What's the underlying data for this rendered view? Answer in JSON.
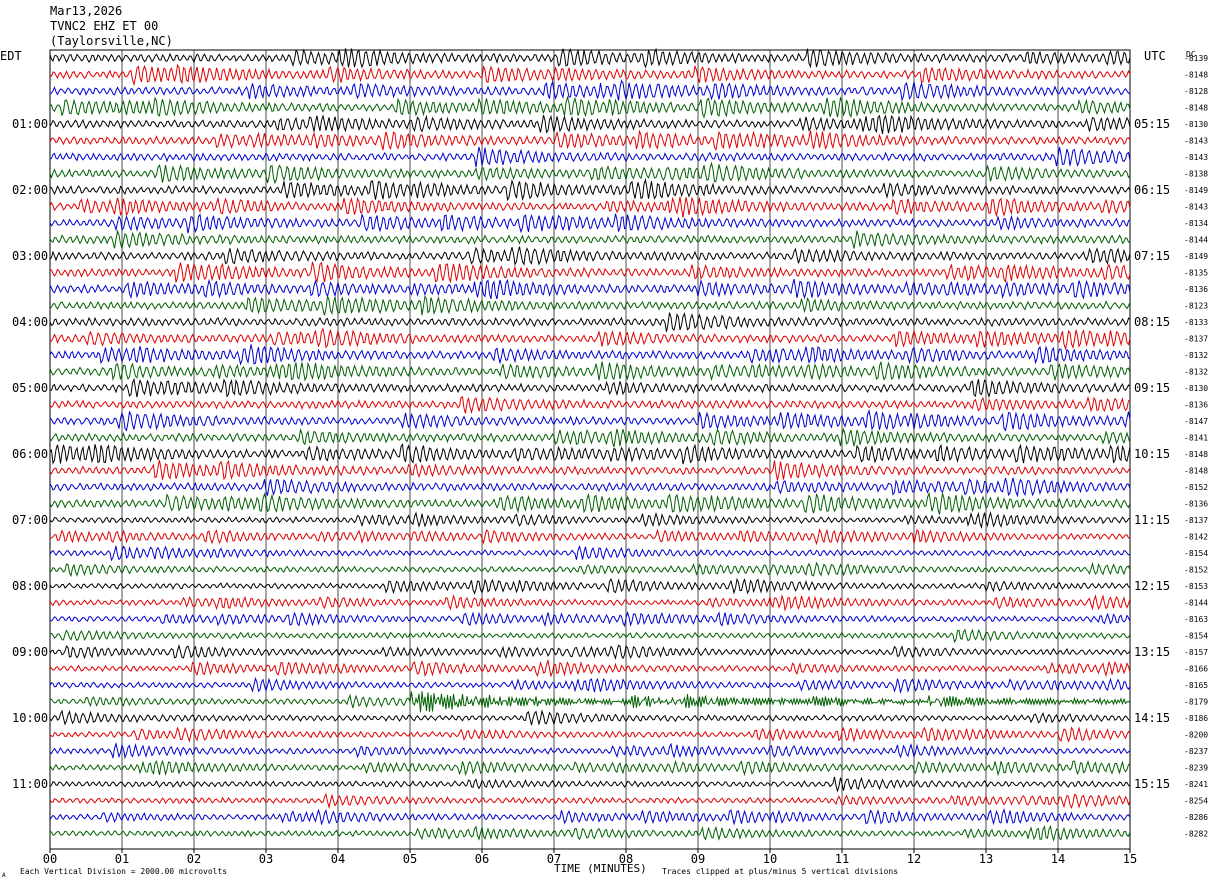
{
  "header": {
    "date": "Mar13,2026",
    "station": "TVNC2 EHZ ET 00",
    "location": "(Taylorsville,NC)",
    "left_zone": "EDT",
    "right_zone": "UTC",
    "dc_label": "DC"
  },
  "footer": {
    "scale_note": "Each Vertical Division = 2000.00 microvolts",
    "clip_note": "Traces clipped at plus/minus 5 vertical divisions",
    "corner_mark": "A"
  },
  "chart_data": {
    "type": "line",
    "subtype": "helicorder",
    "xlabel": "TIME (MINUTES)",
    "x_ticks": [
      "00",
      "01",
      "02",
      "03",
      "04",
      "05",
      "06",
      "07",
      "08",
      "09",
      "10",
      "11",
      "12",
      "13",
      "14",
      "15"
    ],
    "xlim": [
      0,
      15
    ],
    "trace_minutes": 15,
    "traces_per_hour": 4,
    "trace_colors": [
      "#000000",
      "#e00000",
      "#0000d0",
      "#006000"
    ],
    "grid": "vertical lines at each minute",
    "left_hour_labels": [
      "01:00",
      "02:00",
      "03:00",
      "04:00",
      "05:00",
      "06:00",
      "07:00",
      "08:00",
      "09:00",
      "10:00",
      "11:00"
    ],
    "right_hour_labels": [
      "05:15",
      "06:15",
      "07:15",
      "08:15",
      "09:15",
      "10:15",
      "11:15",
      "12:15",
      "13:15",
      "14:15",
      "15:15"
    ],
    "first_labeled_trace_index": 4,
    "dc_offsets": [
      "-8139",
      "-8148",
      "-8128",
      "-8148",
      "-8130",
      "-8143",
      "-8143",
      "-8138",
      "-8149",
      "-8143",
      "-8134",
      "-8144",
      "-8149",
      "-8135",
      "-8136",
      "-8123",
      "-8133",
      "-8137",
      "-8132",
      "-8132",
      "-8130",
      "-8136",
      "-8147",
      "-8141",
      "-8148",
      "-8148",
      "-8152",
      "-8136",
      "-8137",
      "-8142",
      "-8154",
      "-8152",
      "-8153",
      "-8144",
      "-8163",
      "-8154",
      "-8157",
      "-8166",
      "-8165",
      "-8179",
      "-8186",
      "-8200",
      "-8237",
      "-8239",
      "-8241",
      "-8254",
      "-8286",
      "-8282"
    ],
    "event": {
      "trace_index": 39,
      "onset_minute": 5.0,
      "duration_minutes": 2.2,
      "peak_divisions": 2.4
    }
  }
}
